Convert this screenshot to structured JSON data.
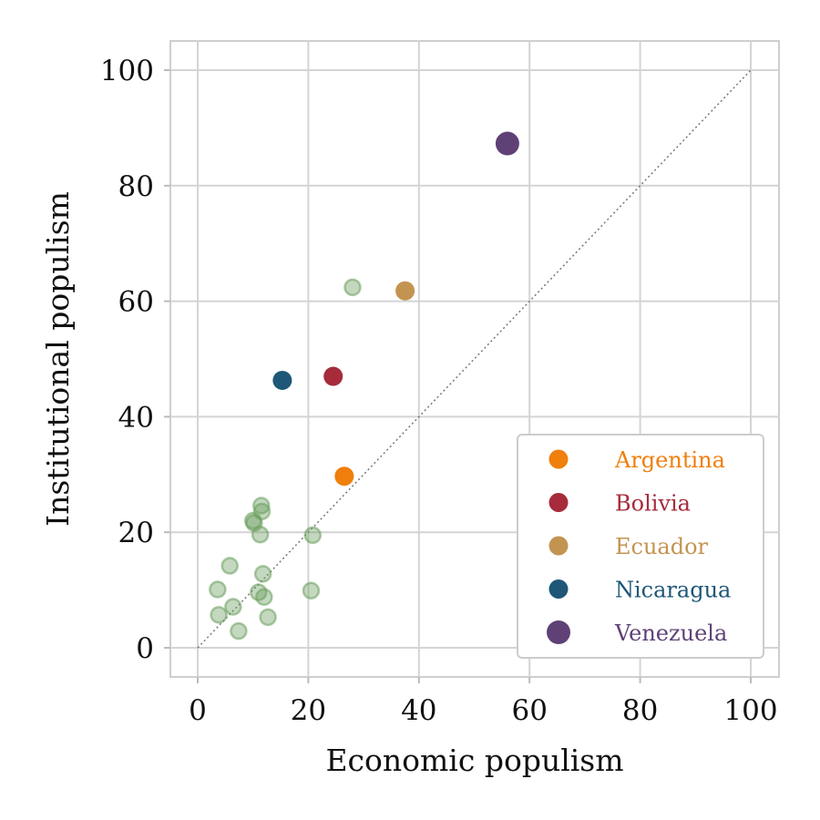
{
  "chart_data": {
    "type": "scatter",
    "xlabel": "Economic populism",
    "ylabel": "Institutional populism",
    "xlim": [
      -5,
      105
    ],
    "ylim": [
      -5,
      105
    ],
    "xticks": [
      0,
      20,
      40,
      60,
      80,
      100
    ],
    "yticks": [
      0,
      20,
      40,
      60,
      80,
      100
    ],
    "grid": true,
    "reference_line": {
      "style": "dotted",
      "from": [
        0,
        0
      ],
      "to": [
        100,
        100
      ]
    },
    "legend_position": "lower-right",
    "highlighted": [
      {
        "name": "Argentina",
        "x": 26.5,
        "y": 29.7,
        "color": "#F07F0C"
      },
      {
        "name": "Bolivia",
        "x": 24.5,
        "y": 47.0,
        "color": "#A62B3B"
      },
      {
        "name": "Ecuador",
        "x": 37.5,
        "y": 61.8,
        "color": "#C39451"
      },
      {
        "name": "Nicaragua",
        "x": 15.3,
        "y": 46.3,
        "color": "#1E5778"
      },
      {
        "name": "Venezuela",
        "x": 56.0,
        "y": 87.3,
        "color": "#5F4176",
        "large": true
      }
    ],
    "others": {
      "color": "#6A9E5C",
      "points": [
        [
          28.0,
          62.4
        ],
        [
          11.5,
          24.6
        ],
        [
          11.6,
          23.6
        ],
        [
          10.0,
          22.0
        ],
        [
          10.2,
          21.6
        ],
        [
          11.3,
          19.6
        ],
        [
          20.8,
          19.5
        ],
        [
          5.8,
          14.2
        ],
        [
          11.8,
          12.8
        ],
        [
          3.6,
          10.1
        ],
        [
          20.5,
          9.9
        ],
        [
          11.0,
          9.6
        ],
        [
          12.0,
          8.8
        ],
        [
          6.4,
          7.1
        ],
        [
          3.8,
          5.7
        ],
        [
          12.7,
          5.3
        ],
        [
          7.4,
          2.9
        ]
      ]
    }
  }
}
